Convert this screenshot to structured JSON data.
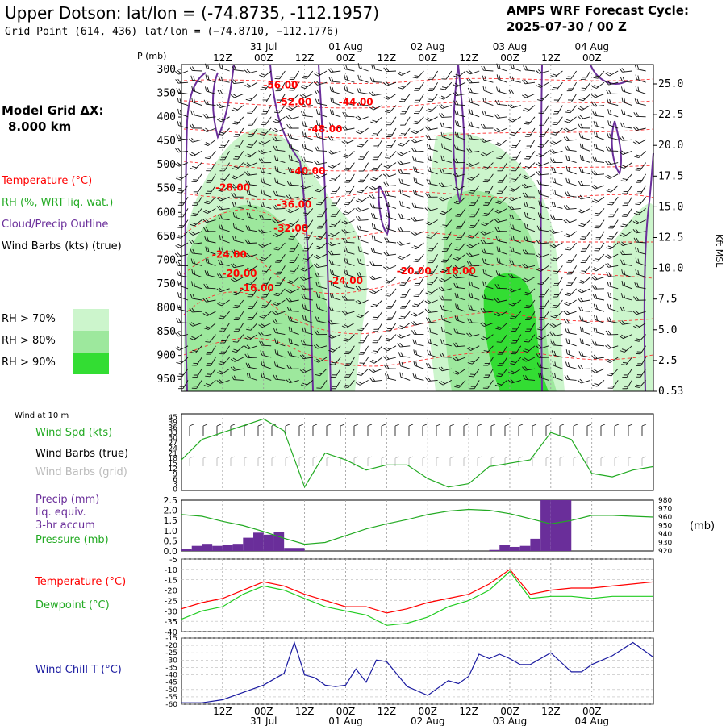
{
  "header": {
    "title": "Upper Dotson:  lat/lon = (-74.8735, -112.1957)",
    "subtitle": "Grid Point (614, 436) lat/lon = (−74.8710, −112.1776)",
    "cycle_line1": "AMPS WRF Forecast Cycle:",
    "cycle_line2": "2025-07-30 / 00  Z"
  },
  "model_grid": {
    "label": "Model Grid ΔX:",
    "value": "8.000 km"
  },
  "time_axis": {
    "top_hours": [
      "12Z",
      "00Z",
      "12Z",
      "00Z",
      "12Z",
      "00Z",
      "12Z",
      "00Z",
      "12Z",
      "00Z"
    ],
    "top_dates": [
      "31 Jul",
      "01 Aug",
      "02 Aug",
      "03 Aug",
      "04 Aug"
    ],
    "bottom_hours": [
      "12Z",
      "00Z",
      "12Z",
      "00Z",
      "12Z",
      "00Z",
      "12Z",
      "00Z",
      "12Z",
      "00Z"
    ],
    "bottom_dates": [
      "31 Jul",
      "01 Aug",
      "02 Aug",
      "03 Aug",
      "04 Aug"
    ]
  },
  "legend": {
    "temperature": "Temperature (°C)",
    "rh": "RH (%, WRT liq. wat.)",
    "cloud": "Cloud/Precip Outline",
    "wind_barbs": "Wind Barbs (kts) (true)",
    "rh_levels": [
      "RH > 70%",
      "RH > 80%",
      "RH > 90%"
    ],
    "colors": {
      "temperature": "#ff0000",
      "rh": "#22aa22",
      "cloud": "#6a2e9a",
      "rh70": "#ccf5cc",
      "rh80": "#9de89d",
      "rh90": "#33dd33"
    }
  },
  "chart_data": [
    {
      "type": "heatmap",
      "name": "cross-section",
      "p_label": "P (mb)",
      "p_levels": [
        300,
        350,
        400,
        450,
        500,
        550,
        600,
        650,
        700,
        750,
        800,
        850,
        900,
        950
      ],
      "kft_label": "Kft MSL",
      "kft_ticks": [
        "25.0",
        "22.5",
        "20.0",
        "17.5",
        "15.0",
        "12.5",
        "10.0",
        "7.5",
        "5.0",
        "2.5",
        "0.53"
      ],
      "temp_labels": [
        {
          "text": "-56.00",
          "t": 29,
          "p": 340
        },
        {
          "text": "-52.00",
          "t": 33,
          "p": 375
        },
        {
          "text": "-44.00",
          "t": 51,
          "p": 375
        },
        {
          "text": "-48.00",
          "t": 42,
          "p": 432
        },
        {
          "text": "-40.00",
          "t": 37,
          "p": 520
        },
        {
          "text": "-28.00",
          "t": 15,
          "p": 555
        },
        {
          "text": "-36.00",
          "t": 33,
          "p": 590
        },
        {
          "text": "-32.00",
          "t": 32,
          "p": 640
        },
        {
          "text": "-24.00",
          "t": 14,
          "p": 695
        },
        {
          "text": "-20.00",
          "t": 17,
          "p": 735
        },
        {
          "text": "-16.00",
          "t": 22,
          "p": 765
        },
        {
          "text": "-24.00",
          "t": 48,
          "p": 750
        },
        {
          "text": "-20.00",
          "t": 68,
          "p": 730
        },
        {
          "text": "-16.00",
          "t": 81,
          "p": 730
        }
      ]
    },
    {
      "type": "line",
      "name": "wind-10m",
      "header": "Wind at 10 m",
      "label_speed": "Wind Spd (kts)",
      "label_barbs_true": "Wind Barbs (true)",
      "label_barbs_grid": "Wind Barbs (grid)",
      "y_ticks": [
        45,
        39,
        36,
        33,
        30,
        27,
        24,
        21,
        18,
        15,
        12,
        9,
        6,
        3,
        0
      ],
      "ylim": [
        0,
        45
      ],
      "x": [
        0,
        6,
        12,
        18,
        24,
        30,
        36,
        42,
        48,
        54,
        60,
        66,
        72,
        78,
        84,
        90,
        96,
        102,
        108,
        114,
        120,
        126,
        132,
        138
      ],
      "values": [
        18,
        30,
        34,
        38,
        42,
        35,
        2,
        22,
        18,
        12,
        15,
        15,
        7,
        2,
        4,
        14,
        16,
        18,
        34,
        30,
        10,
        8,
        12,
        14
      ]
    },
    {
      "type": "bar",
      "name": "precip-pressure",
      "label_precip": "Precip (mm)",
      "label_liq": "liq. equiv.",
      "label_accum": "3-hr accum",
      "label_pressure": "Pressure (mb)",
      "y_ticks": [
        "2.5",
        "2.0",
        "1.5",
        "1.0",
        "0.5",
        "0.0"
      ],
      "ylim": [
        0,
        2.5
      ],
      "y2_ticks": [
        "980",
        "970",
        "960",
        "950",
        "940",
        "930",
        "920"
      ],
      "y2lim": [
        920,
        980
      ],
      "y2_unit": "(mb)",
      "bar_x": [
        0,
        3,
        6,
        9,
        12,
        15,
        18,
        21,
        24,
        27,
        30,
        33,
        36,
        39,
        42,
        45,
        48,
        51,
        54,
        57,
        60,
        63,
        66,
        69,
        72,
        75,
        78,
        81,
        84,
        87,
        90,
        93,
        96,
        99,
        102,
        105,
        108,
        111,
        114,
        117,
        120
      ],
      "bar_values": [
        0.1,
        0.25,
        0.35,
        0.25,
        0.3,
        0.35,
        0.65,
        0.9,
        0.8,
        0.95,
        0.15,
        0.15,
        0,
        0,
        0,
        0,
        0,
        0,
        0,
        0,
        0,
        0,
        0,
        0,
        0,
        0,
        0,
        0,
        0,
        0,
        0.05,
        0.3,
        0.2,
        0.25,
        0.6,
        2.5,
        2.5,
        2.5,
        0,
        0,
        0
      ],
      "pressure_x": [
        0,
        6,
        12,
        18,
        24,
        30,
        36,
        42,
        48,
        54,
        60,
        66,
        72,
        78,
        84,
        90,
        96,
        102,
        108,
        114,
        120,
        126,
        132,
        138
      ],
      "pressure_values": [
        963,
        961,
        955,
        950,
        943,
        935,
        928,
        930,
        938,
        946,
        952,
        957,
        963,
        967,
        969,
        968,
        964,
        958,
        952,
        956,
        962,
        962,
        961,
        960
      ]
    },
    {
      "type": "line",
      "name": "temperature-dewpoint",
      "label_temp": "Temperature (°C)",
      "label_dew": "Dewpoint (°C)",
      "y_ticks": [
        -5,
        -10,
        -15,
        -20,
        -25,
        -30,
        -35,
        -40
      ],
      "ylim": [
        -40,
        -5
      ],
      "x": [
        0,
        6,
        12,
        18,
        24,
        30,
        36,
        42,
        48,
        54,
        60,
        66,
        72,
        78,
        84,
        90,
        96,
        102,
        108,
        114,
        120,
        126,
        132,
        138
      ],
      "temperature": [
        -29,
        -26,
        -24,
        -20,
        -16,
        -18,
        -22,
        -25,
        -28,
        -28,
        -31,
        -29,
        -26,
        -24,
        -22,
        -17,
        -10,
        -22,
        -20,
        -19,
        -19,
        -18,
        -17,
        -16
      ],
      "dewpoint": [
        -34,
        -30,
        -28,
        -22,
        -18,
        -20,
        -24,
        -28,
        -30,
        -32,
        -37,
        -36,
        -33,
        -28,
        -25,
        -20,
        -11,
        -24,
        -23,
        -23,
        -24,
        -23,
        -23,
        -23
      ]
    },
    {
      "type": "line",
      "name": "wind-chill",
      "label": "Wind Chill T (°C)",
      "y_ticks": [
        -15,
        -20,
        -25,
        -30,
        -35,
        -40,
        -45,
        -50,
        -55,
        -60
      ],
      "ylim": [
        -60,
        -15
      ],
      "x": [
        0,
        6,
        12,
        18,
        24,
        30,
        33,
        36,
        39,
        42,
        45,
        48,
        51,
        54,
        57,
        60,
        66,
        72,
        78,
        81,
        84,
        87,
        90,
        93,
        96,
        99,
        102,
        108,
        114,
        117,
        120,
        126,
        132,
        138
      ],
      "values": [
        -59,
        -59,
        -57,
        -52,
        -47,
        -39,
        -18,
        -40,
        -42,
        -47,
        -48,
        -47,
        -36,
        -45,
        -30,
        -31,
        -48,
        -54,
        -44,
        -46,
        -41,
        -26,
        -29,
        -26,
        -29,
        -33,
        -33,
        -25,
        -38,
        -38,
        -33,
        -27,
        -18,
        -28
      ]
    }
  ]
}
